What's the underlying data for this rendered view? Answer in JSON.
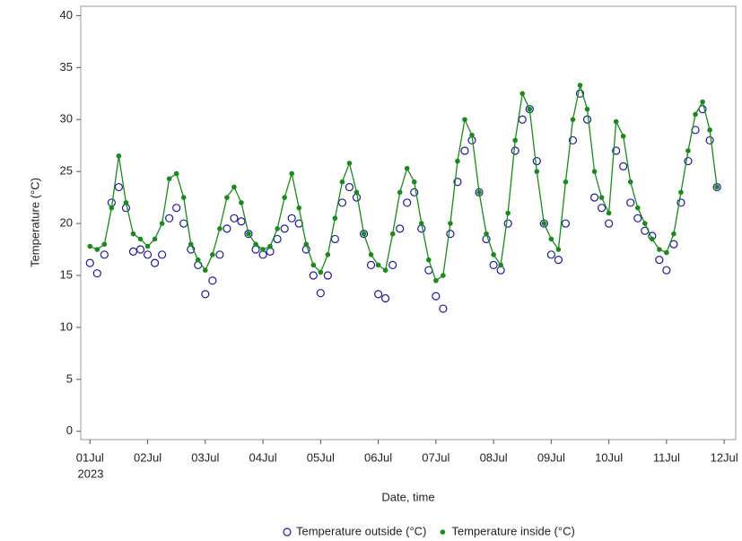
{
  "chart_data": {
    "type": "scatter-line",
    "y_label": "Temperature (°C)",
    "x_label": "Date, time",
    "x_year_label": "2023",
    "x": [
      0,
      0.125,
      0.25,
      0.375,
      0.5,
      0.625,
      0.75,
      0.875,
      1,
      1.125,
      1.25,
      1.375,
      1.5,
      1.625,
      1.75,
      1.875,
      2,
      2.125,
      2.25,
      2.375,
      2.5,
      2.625,
      2.75,
      2.875,
      3,
      3.125,
      3.25,
      3.375,
      3.5,
      3.625,
      3.75,
      3.875,
      4,
      4.125,
      4.25,
      4.375,
      4.5,
      4.625,
      4.75,
      4.875,
      5,
      5.125,
      5.25,
      5.375,
      5.5,
      5.625,
      5.75,
      5.875,
      6,
      6.125,
      6.25,
      6.375,
      6.5,
      6.625,
      6.75,
      6.875,
      7,
      7.125,
      7.25,
      7.375,
      7.5,
      7.625,
      7.75,
      7.875,
      8,
      8.125,
      8.25,
      8.375,
      8.5,
      8.625,
      8.75,
      8.875,
      9,
      9.125,
      9.25,
      9.375,
      9.5,
      9.625,
      9.75,
      9.875,
      10,
      10.125,
      10.25,
      10.375,
      10.5,
      10.625,
      10.75,
      10.875
    ],
    "series": [
      {
        "name": "Temperature outside (°C)",
        "color": "#1a1a9c",
        "marker": "open-circle",
        "values": [
          16.2,
          15.2,
          17,
          22,
          23.5,
          21.5,
          17.3,
          17.5,
          17,
          16.2,
          17,
          20.5,
          21.5,
          20,
          17.5,
          16,
          13.2,
          14.5,
          17,
          19.5,
          20.5,
          20.2,
          19,
          17.5,
          17,
          17.3,
          18.5,
          19.5,
          20.5,
          20,
          17.5,
          15,
          13.3,
          15,
          18.5,
          22,
          23.5,
          22.5,
          19,
          16,
          13.2,
          12.8,
          16,
          19.5,
          22,
          23,
          19.5,
          15.5,
          13,
          11.8,
          19,
          24,
          27,
          28,
          23,
          18.5,
          16,
          15.5,
          20,
          27,
          30,
          31,
          26,
          20,
          17,
          16.5,
          20,
          28,
          32.5,
          30,
          22.5,
          21.5,
          20,
          27,
          25.5,
          22,
          20.5,
          19.3,
          18.8,
          16.5,
          15.5,
          18,
          22,
          26,
          29,
          31,
          28,
          23.5
        ]
      },
      {
        "name": "Temperature inside (°C)",
        "color": "#1a8a1a",
        "marker": "line-dot",
        "values": [
          17.8,
          17.5,
          18,
          21.5,
          26.5,
          22,
          19,
          18.5,
          17.8,
          18.5,
          20,
          24.3,
          24.8,
          22.5,
          18,
          16.5,
          15.5,
          17,
          19.5,
          22.5,
          23.5,
          22,
          19,
          18,
          17.5,
          17.8,
          19.5,
          22.5,
          24.8,
          21.5,
          18,
          16,
          15.3,
          17,
          20.5,
          24,
          25.8,
          23,
          19,
          17,
          16,
          15.5,
          19,
          23,
          25.3,
          24,
          20,
          16.5,
          14.5,
          15,
          20,
          26,
          30,
          28.5,
          23,
          19,
          17,
          16,
          21,
          28,
          32.5,
          31,
          25,
          20,
          18.5,
          17.5,
          24,
          30,
          33.3,
          31,
          25,
          22.5,
          21,
          29.8,
          28.4,
          24,
          21.5,
          20,
          18.5,
          17.5,
          17.2,
          19,
          23,
          27,
          30.5,
          31.7,
          29,
          23.5
        ]
      }
    ],
    "xlim": [
      -0.16,
      11.2
    ],
    "ylim": [
      -0.8,
      40.9
    ],
    "xticks": [
      {
        "value": 0,
        "label": "01Jul"
      },
      {
        "value": 1,
        "label": "02Jul"
      },
      {
        "value": 2,
        "label": "03Jul"
      },
      {
        "value": 3,
        "label": "04Jul"
      },
      {
        "value": 4,
        "label": "05Jul"
      },
      {
        "value": 5,
        "label": "06Jul"
      },
      {
        "value": 6,
        "label": "07Jul"
      },
      {
        "value": 7,
        "label": "08Jul"
      },
      {
        "value": 8,
        "label": "09Jul"
      },
      {
        "value": 9,
        "label": "10Jul"
      },
      {
        "value": 10,
        "label": "11Jul"
      },
      {
        "value": 11,
        "label": "12Jul"
      }
    ],
    "yticks": [
      0,
      5,
      10,
      15,
      20,
      25,
      30,
      35,
      40
    ],
    "grid": false,
    "legend": "bottom"
  }
}
